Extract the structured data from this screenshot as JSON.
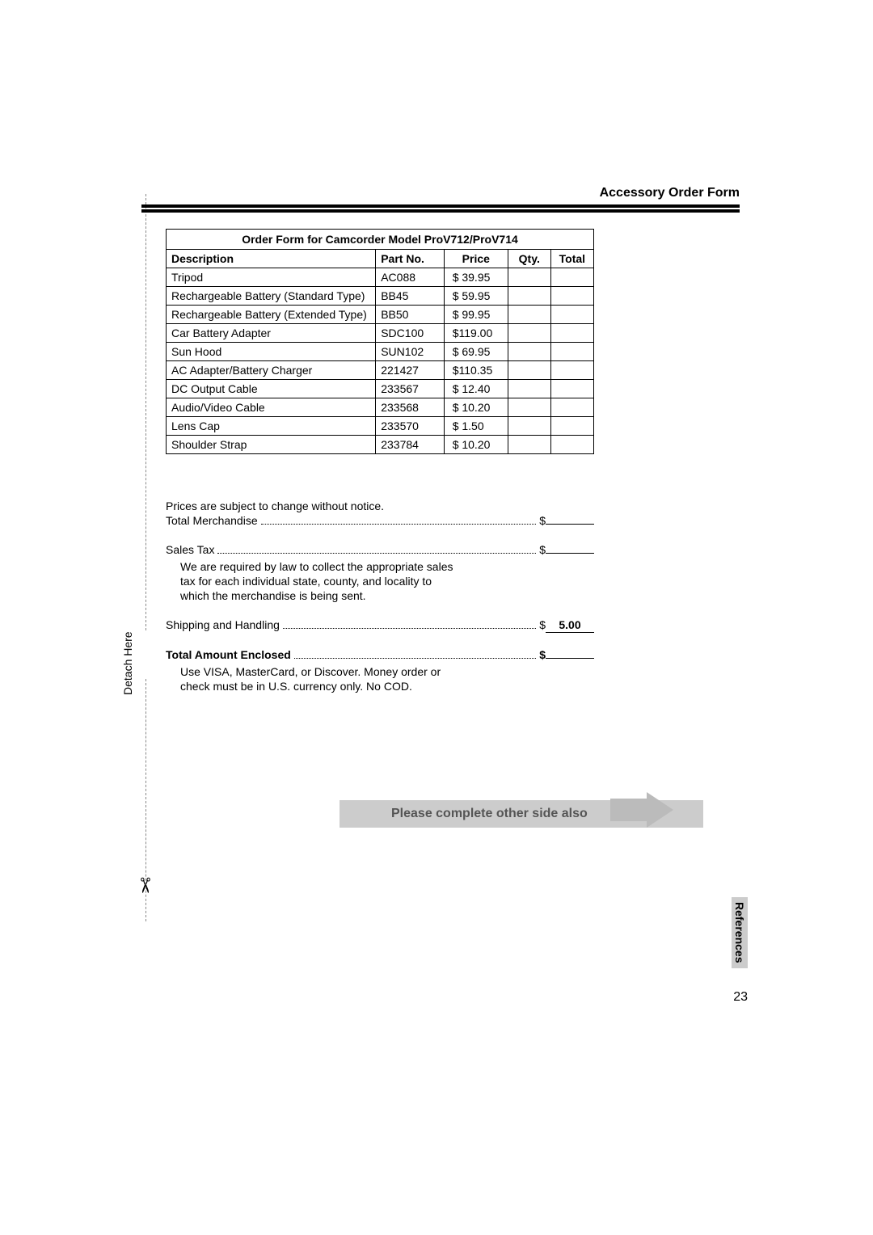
{
  "header": {
    "title": "Accessory Order Form"
  },
  "form": {
    "title": "Order Form for Camcorder Model ProV712/ProV714",
    "columns": [
      "Description",
      "Part No.",
      "Price",
      "Qty.",
      "Total"
    ],
    "rows": [
      {
        "desc": "Tripod",
        "part": "AC088",
        "price": "$  39.95"
      },
      {
        "desc": "Rechargeable Battery (Standard Type)",
        "part": "BB45",
        "price": "$  59.95"
      },
      {
        "desc": "Rechargeable Battery (Extended Type)",
        "part": "BB50",
        "price": "$  99.95"
      },
      {
        "desc": "Car Battery Adapter",
        "part": "SDC100",
        "price": "$119.00"
      },
      {
        "desc": "Sun Hood",
        "part": "SUN102",
        "price": "$  69.95"
      },
      {
        "desc": "AC Adapter/Battery Charger",
        "part": "221427",
        "price": "$110.35"
      },
      {
        "desc": "DC Output Cable",
        "part": "233567",
        "price": "$ 12.40"
      },
      {
        "desc": "Audio/Video Cable",
        "part": "233568",
        "price": "$  10.20"
      },
      {
        "desc": "Lens Cap",
        "part": "233570",
        "price": "$    1.50"
      },
      {
        "desc": "Shoulder Strap",
        "part": "233784",
        "price": "$  10.20"
      }
    ]
  },
  "notes": {
    "notice": "Prices are subject to change without notice.",
    "merchandise_label": "Total Merchandise",
    "salestax_label": "Sales Tax",
    "tax_note": "We are required by law to collect the appropriate sales tax for each individual state, county, and locality to which the merchandise is being sent.",
    "shipping_label": "Shipping and Handling",
    "shipping_value": "5.00",
    "total_enclosed_label": "Total Amount Enclosed",
    "payment_note": "Use VISA, MasterCard, or Discover. Money order or check must be in U.S. currency only.  No COD.",
    "currency": "$"
  },
  "banner": {
    "text": "Please complete other side also"
  },
  "detach": {
    "text": "Detach Here"
  },
  "side": {
    "tab": "References",
    "page": "23"
  },
  "style": {
    "font_family": "Arial, Helvetica, sans-serif",
    "background": "#ffffff"
  }
}
